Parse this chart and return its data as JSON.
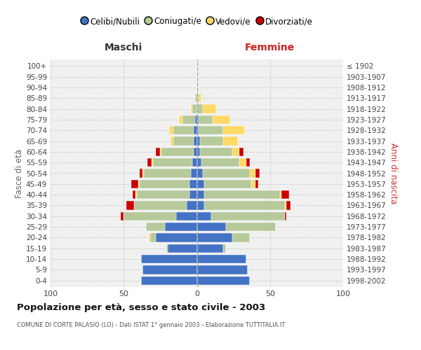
{
  "age_groups": [
    "0-4",
    "5-9",
    "10-14",
    "15-19",
    "20-24",
    "25-29",
    "30-34",
    "35-39",
    "40-44",
    "45-49",
    "50-54",
    "55-59",
    "60-64",
    "65-69",
    "70-74",
    "75-79",
    "80-84",
    "85-89",
    "90-94",
    "95-99",
    "100+"
  ],
  "birth_years": [
    "1998-2002",
    "1993-1997",
    "1988-1992",
    "1983-1987",
    "1978-1982",
    "1973-1977",
    "1968-1972",
    "1963-1967",
    "1958-1962",
    "1953-1957",
    "1948-1952",
    "1943-1947",
    "1938-1942",
    "1933-1937",
    "1928-1932",
    "1923-1927",
    "1918-1922",
    "1913-1917",
    "1908-1912",
    "1903-1907",
    "≤ 1902"
  ],
  "colors": {
    "celibe": "#4472c4",
    "coniugato": "#b5c99a",
    "vedovo": "#ffd966",
    "divorziato": "#cc0000"
  },
  "maschi": {
    "celibe": [
      38,
      37,
      38,
      20,
      28,
      22,
      14,
      7,
      5,
      5,
      4,
      3,
      2,
      2,
      2,
      1,
      0,
      0,
      0,
      0,
      0
    ],
    "coniugato": [
      0,
      0,
      0,
      1,
      4,
      13,
      36,
      36,
      36,
      34,
      32,
      27,
      22,
      14,
      14,
      9,
      3,
      1,
      0,
      0,
      0
    ],
    "vedovo": [
      0,
      0,
      0,
      0,
      1,
      0,
      0,
      0,
      1,
      1,
      1,
      1,
      1,
      2,
      3,
      2,
      1,
      0,
      0,
      0,
      0
    ],
    "divorziato": [
      0,
      0,
      0,
      0,
      0,
      0,
      2,
      5,
      2,
      5,
      2,
      3,
      3,
      0,
      0,
      0,
      0,
      0,
      0,
      0,
      0
    ]
  },
  "femmine": {
    "nubile": [
      36,
      35,
      34,
      18,
      24,
      20,
      10,
      5,
      5,
      5,
      4,
      3,
      2,
      2,
      1,
      1,
      0,
      0,
      0,
      0,
      0
    ],
    "coniugata": [
      0,
      0,
      0,
      2,
      12,
      34,
      50,
      55,
      52,
      32,
      32,
      26,
      22,
      16,
      17,
      10,
      4,
      1,
      0,
      0,
      0
    ],
    "vedova": [
      0,
      0,
      0,
      0,
      0,
      0,
      0,
      1,
      1,
      3,
      4,
      5,
      5,
      10,
      15,
      12,
      9,
      2,
      1,
      0,
      0
    ],
    "divorziata": [
      0,
      0,
      0,
      0,
      0,
      0,
      1,
      3,
      5,
      2,
      3,
      2,
      3,
      0,
      0,
      0,
      0,
      0,
      0,
      0,
      0
    ]
  },
  "xlim": 100,
  "title": "Popolazione per età, sesso e stato civile - 2003",
  "subtitle": "COMUNE DI CORTE PALASIO (LO) - Dati ISTAT 1° gennaio 2003 - Elaborazione TUTTITALIA.IT",
  "xlabel_left": "Maschi",
  "xlabel_right": "Femmine",
  "ylabel_left": "Fasce di età",
  "ylabel_right": "Anni di nascita",
  "legend_labels": [
    "Celibi/Nubili",
    "Coniugati/e",
    "Vedovi/e",
    "Divorziati/e"
  ],
  "grid_color": "#cccccc",
  "bg_color": "#ffffff",
  "plot_bg": "#f0f0f0",
  "bar_height": 0.82
}
